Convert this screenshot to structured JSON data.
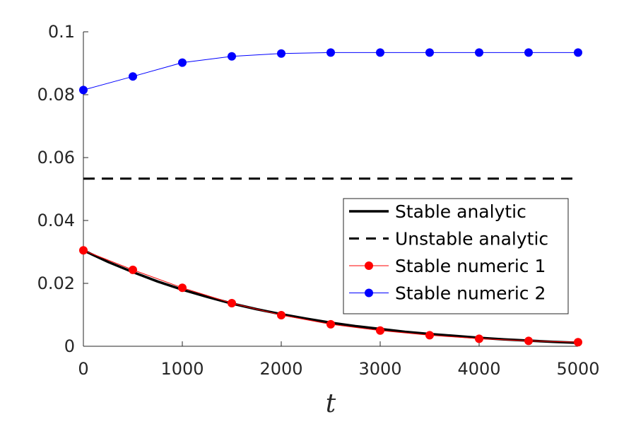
{
  "chart_data": {
    "type": "line",
    "title": "",
    "xlabel": "t",
    "ylabel": "",
    "xlim": [
      0,
      5000
    ],
    "ylim": [
      0,
      0.1
    ],
    "xticks": [
      0,
      1000,
      2000,
      3000,
      4000,
      5000
    ],
    "xtick_labels": [
      "0",
      "1000",
      "2000",
      "3000",
      "4000",
      "5000"
    ],
    "yticks": [
      0,
      0.02,
      0.04,
      0.06,
      0.08,
      0.1
    ],
    "ytick_labels": [
      "0",
      "0.02",
      "0.04",
      "0.06",
      "0.08",
      "0.1"
    ],
    "grid": false,
    "legend_position": "right",
    "series": [
      {
        "name": "Stable analytic",
        "style": "solid",
        "color": "#000000",
        "markers": false,
        "x": [
          0,
          250,
          500,
          750,
          1000,
          1250,
          1500,
          1750,
          2000,
          2250,
          2500,
          2750,
          3000,
          3250,
          3500,
          3750,
          4000,
          4250,
          4500,
          4750,
          5000
        ],
        "y": [
          0.0305,
          0.0268,
          0.0236,
          0.0206,
          0.018,
          0.0157,
          0.0136,
          0.0118,
          0.0102,
          0.0088,
          0.0075,
          0.0064,
          0.0055,
          0.0046,
          0.0039,
          0.0033,
          0.0027,
          0.0022,
          0.0018,
          0.0014,
          0.0011
        ]
      },
      {
        "name": "Unstable analytic",
        "style": "dashed",
        "color": "#000000",
        "markers": false,
        "x": [
          0,
          5000
        ],
        "y": [
          0.0533,
          0.0533
        ]
      },
      {
        "name": "Stable numeric 1",
        "style": "solid",
        "color": "#ff0000",
        "markers": true,
        "x": [
          0,
          500,
          1000,
          1500,
          2000,
          2500,
          3000,
          3500,
          4000,
          4500,
          5000
        ],
        "y": [
          0.0305,
          0.0243,
          0.0186,
          0.0137,
          0.0099,
          0.007,
          0.005,
          0.0035,
          0.0024,
          0.0017,
          0.0013
        ]
      },
      {
        "name": "Stable numeric 2",
        "style": "solid",
        "color": "#0000ff",
        "markers": true,
        "x": [
          0,
          500,
          1000,
          1500,
          2000,
          2500,
          3000,
          3500,
          4000,
          4500,
          5000
        ],
        "y": [
          0.0815,
          0.0858,
          0.0902,
          0.0922,
          0.0931,
          0.0934,
          0.0934,
          0.0934,
          0.0934,
          0.0934,
          0.0934
        ]
      }
    ]
  }
}
